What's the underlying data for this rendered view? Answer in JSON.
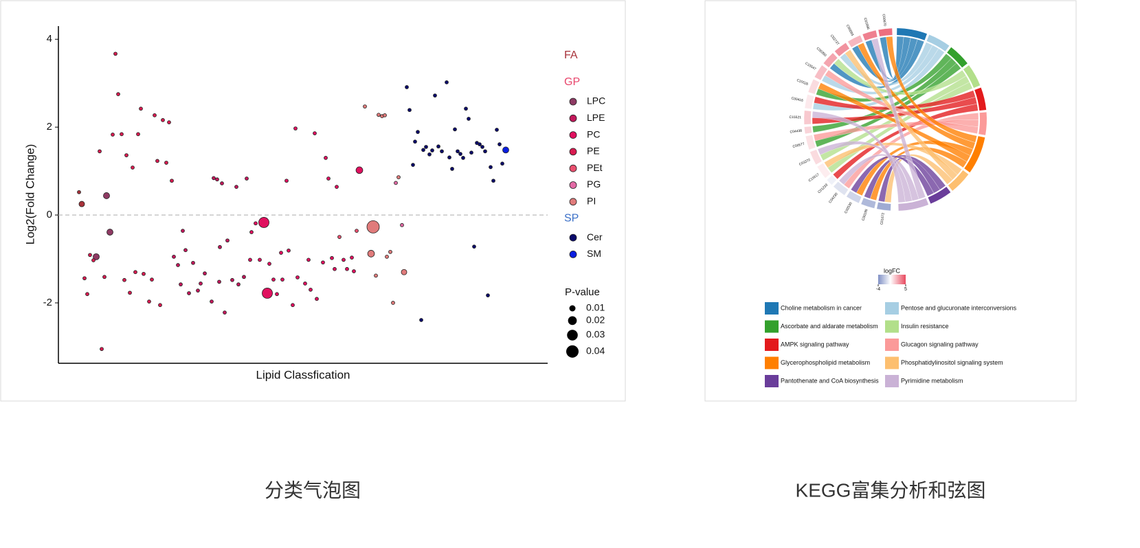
{
  "chart_data": [
    {
      "type": "scatter",
      "caption": "分类气泡图",
      "x_label": "Lipid Classfication",
      "y_label": "Log2(Fold Change)",
      "xlim": [
        0,
        712
      ],
      "ylim": [
        -3.375,
        4.3
      ],
      "yticks": [
        -2,
        0,
        2,
        4
      ],
      "reference_line": 0,
      "size_legend_title": "P-value",
      "size_legend": [
        0.01,
        0.02,
        0.03,
        0.04
      ],
      "groups": [
        {
          "name": "FA",
          "color": "#a8323a"
        },
        {
          "name": "GP",
          "color": "#e8456b"
        },
        {
          "name": "SP",
          "color": "#3a6fc7"
        }
      ],
      "series": [
        {
          "group": "FA",
          "color": "#a8323a",
          "x": [
            30,
            34
          ],
          "values": [
            0.52,
            0.25
          ],
          "sizes": [
            0.003,
            0.008
          ]
        },
        {
          "group": "GP",
          "name": "LPC",
          "color": "#8e3a63",
          "x": [
            55,
            70,
            75
          ],
          "values": [
            -0.95,
            0.44,
            -0.39
          ],
          "sizes": [
            0.01,
            0.01,
            0.01
          ]
        },
        {
          "group": "GP",
          "name": "LPE",
          "color": "#c2185b",
          "x": [
            168,
            174,
            181,
            185,
            178,
            190,
            196,
            203,
            207,
            213,
            223,
            234,
            242,
            253,
            262,
            270,
            246,
            235,
            226,
            231,
            238,
            259,
            274
          ],
          "values": [
            -0.95,
            -1.14,
            -0.36,
            -0.8,
            -1.58,
            -1.78,
            -1.09,
            -1.72,
            -1.56,
            -1.33,
            -1.97,
            -1.52,
            -2.22,
            -1.48,
            -1.58,
            -1.41,
            -0.58,
            -0.73,
            0.84,
            0.81,
            0.72,
            0.64,
            0.83
          ],
          "sizes": [
            0.003,
            0.003,
            0.003,
            0.003,
            0.003,
            0.003,
            0.003,
            0.003,
            0.003,
            0.003,
            0.003,
            0.003,
            0.003,
            0.003,
            0.003,
            0.003,
            0.003,
            0.003,
            0.003,
            0.003,
            0.003,
            0.003,
            0.003
          ]
        },
        {
          "group": "GP",
          "name": "PC",
          "color": "#e0115f",
          "x": [
            281,
            279,
            293,
            287,
            307,
            324,
            335,
            313,
            326,
            341,
            318,
            332,
            345,
            348,
            359,
            364,
            367,
            376,
            373,
            385,
            389,
            393,
            398,
            402,
            405,
            415,
            420,
            427,
            430,
            299,
            304,
            438
          ],
          "values": [
            -0.39,
            -1.02,
            -1.02,
            -0.19,
            -1.11,
            -0.86,
            -0.81,
            -1.47,
            -1.47,
            -2.05,
            -1.8,
            0.78,
            1.97,
            -1.42,
            -1.56,
            -1.02,
            -1.7,
            -1.91,
            1.86,
            -1.08,
            1.3,
            0.83,
            -0.98,
            -1.23,
            0.64,
            -1.02,
            -1.23,
            -0.97,
            -1.28,
            -0.17,
            -1.78,
            1.02
          ],
          "sizes": [
            0.003,
            0.003,
            0.003,
            0.003,
            0.003,
            0.003,
            0.003,
            0.003,
            0.003,
            0.003,
            0.003,
            0.003,
            0.003,
            0.003,
            0.003,
            0.003,
            0.003,
            0.003,
            0.003,
            0.003,
            0.003,
            0.003,
            0.003,
            0.003,
            0.003,
            0.003,
            0.003,
            0.003,
            0.003,
            0.028,
            0.028,
            0.012
          ]
        },
        {
          "group": "GP",
          "name": "PE",
          "color": "#d81b50",
          "x": [
            83,
            87,
            79,
            92,
            60,
            99,
            108,
            116,
            120,
            140,
            152,
            161,
            144,
            157,
            165,
            46,
            51,
            38,
            42,
            67,
            96,
            104,
            112,
            124,
            136,
            132,
            148,
            63
          ],
          "values": [
            3.67,
            2.75,
            1.83,
            1.84,
            1.45,
            1.36,
            1.08,
            1.84,
            2.42,
            2.27,
            2.16,
            2.11,
            1.23,
            1.19,
            0.78,
            -0.91,
            -1.03,
            -1.44,
            -1.8,
            -1.41,
            -1.48,
            -1.77,
            -1.3,
            -1.34,
            -1.47,
            -1.97,
            -2.05,
            -3.05
          ],
          "sizes": [
            0.003,
            0.003,
            0.003,
            0.003,
            0.003,
            0.003,
            0.003,
            0.003,
            0.003,
            0.003,
            0.003,
            0.003,
            0.003,
            0.003,
            0.003,
            0.003,
            0.003,
            0.003,
            0.003,
            0.003,
            0.003,
            0.003,
            0.003,
            0.003,
            0.003,
            0.003,
            0.003,
            0.003
          ]
        },
        {
          "group": "GP",
          "name": "PEt",
          "color": "#e94f6e",
          "x": [
            409,
            434
          ],
          "values": [
            -0.5,
            -0.36
          ],
          "sizes": [
            0.003,
            0.003
          ]
        },
        {
          "group": "GP",
          "name": "PG",
          "color": "#e36aa5",
          "x": [
            500,
            491
          ],
          "values": [
            -0.23,
            0.73
          ],
          "sizes": [
            0.003,
            0.003
          ]
        },
        {
          "group": "GP",
          "name": "PI",
          "color": "#e07b7b",
          "x": [
            458,
            455,
            446,
            466,
            471,
            475,
            495,
            503,
            462,
            478,
            483,
            487
          ],
          "values": [
            -0.27,
            -0.88,
            2.47,
            2.28,
            2.25,
            2.27,
            0.86,
            -1.3,
            -1.38,
            -0.95,
            -0.84,
            -2.0
          ],
          "sizes": [
            0.04,
            0.012,
            0.003,
            0.003,
            0.003,
            0.003,
            0.003,
            0.008,
            0.003,
            0.003,
            0.003,
            0.003
          ]
        },
        {
          "group": "SP",
          "name": "Cer",
          "color": "#0b0b6b",
          "x": [
            507,
            511,
            519,
            523,
            516,
            528,
            531,
            535,
            540,
            544,
            548,
            553,
            558,
            565,
            569,
            573,
            577,
            581,
            585,
            589,
            593,
            597,
            601,
            605,
            609,
            613,
            617,
            621,
            625,
            629,
            633,
            638,
            642,
            646
          ],
          "values": [
            2.91,
            2.39,
            1.67,
            1.89,
            1.14,
            -2.39,
            1.48,
            1.55,
            1.38,
            1.47,
            2.72,
            1.56,
            1.45,
            3.02,
            1.31,
            1.05,
            1.95,
            1.45,
            1.39,
            1.3,
            2.42,
            2.19,
            1.42,
            -0.72,
            1.64,
            1.61,
            1.55,
            1.45,
            -1.83,
            1.09,
            0.78,
            1.94,
            1.61,
            1.17
          ],
          "sizes": [
            0.003,
            0.003,
            0.003,
            0.003,
            0.003,
            0.003,
            0.003,
            0.003,
            0.003,
            0.003,
            0.003,
            0.003,
            0.003,
            0.003,
            0.003,
            0.003,
            0.003,
            0.003,
            0.003,
            0.003,
            0.003,
            0.003,
            0.003,
            0.003,
            0.003,
            0.003,
            0.003,
            0.003,
            0.003,
            0.003,
            0.003,
            0.003,
            0.003,
            0.003
          ]
        },
        {
          "group": "SP",
          "name": "SM",
          "color": "#0a1ee0",
          "x": [
            651
          ],
          "values": [
            1.48
          ],
          "sizes": [
            0.01
          ]
        }
      ]
    },
    {
      "type": "chord",
      "caption": "KEGG富集分析和弦图",
      "colorbar_title": "logFC",
      "logfc_lim": [
        -4,
        5
      ],
      "logfc_ticks": [
        -4,
        5
      ],
      "low_color": "#7f8fc4",
      "mid_color": "#ffffff",
      "high_color": "#e84a5f",
      "compounds": [
        {
          "name": "C01672",
          "logfc": -3
        },
        {
          "name": "C00195",
          "logfc": -2.5
        },
        {
          "name": "C02530",
          "logfc": -1.5
        },
        {
          "name": "C04230",
          "logfc": -1
        },
        {
          "name": "C01233",
          "logfc": -0.5
        },
        {
          "name": "C15517",
          "logfc": 0.5
        },
        {
          "name": "C03372",
          "logfc": 1
        },
        {
          "name": "C00577",
          "logfc": 0.8
        },
        {
          "name": "C04438",
          "logfc": 1.2
        },
        {
          "name": "C15521",
          "logfc": 1.5
        },
        {
          "name": "C00416",
          "logfc": 0.6
        },
        {
          "name": "C15526",
          "logfc": 1
        },
        {
          "name": "C15547",
          "logfc": 1.8
        },
        {
          "name": "C00350",
          "logfc": 2.5
        },
        {
          "name": "C02737",
          "logfc": 3
        },
        {
          "name": "C00093",
          "logfc": 2
        },
        {
          "name": "C01996",
          "logfc": 3.5
        },
        {
          "name": "C00670",
          "logfc": 4
        }
      ],
      "pathways": [
        {
          "name": "Choline metabolism in cancer",
          "color": "#1f78b4",
          "members": [
            "C00670",
            "C01996",
            "C00093",
            "C00350"
          ]
        },
        {
          "name": "Pentose and glucuronate interconversions",
          "color": "#a6cee3",
          "members": [
            "C02737",
            "C15547",
            "C00416"
          ]
        },
        {
          "name": "Ascorbate and aldarate metabolism",
          "color": "#33a02c",
          "members": [
            "C15526",
            "C04438",
            "C00577"
          ]
        },
        {
          "name": "Insulin resistance",
          "color": "#b2df8a",
          "members": [
            "C00350",
            "C03372",
            "C15517"
          ]
        },
        {
          "name": "AMPK signaling pathway",
          "color": "#e31a1c",
          "members": [
            "C00416",
            "C15521",
            "C01233"
          ]
        },
        {
          "name": "Glucagon signaling pathway",
          "color": "#fb9a99",
          "members": [
            "C04230",
            "C00577",
            "C15547"
          ]
        },
        {
          "name": "Glycerophospholipid metabolism",
          "color": "#ff7f00",
          "members": [
            "C00670",
            "C00093",
            "C02530",
            "C15526",
            "C00195"
          ]
        },
        {
          "name": "Phosphatidylinositol signaling system",
          "color": "#fdbf6f",
          "members": [
            "C15517",
            "C02737",
            "C01672"
          ]
        },
        {
          "name": "Pantothenate and CoA biosynthesis",
          "color": "#6a3d9a",
          "members": [
            "C00195",
            "C01672",
            "C02530"
          ]
        },
        {
          "name": "Pyrimidine metabolism",
          "color": "#cab2d6",
          "members": [
            "C01996",
            "C04230",
            "C03372",
            "C15521"
          ]
        }
      ]
    }
  ]
}
